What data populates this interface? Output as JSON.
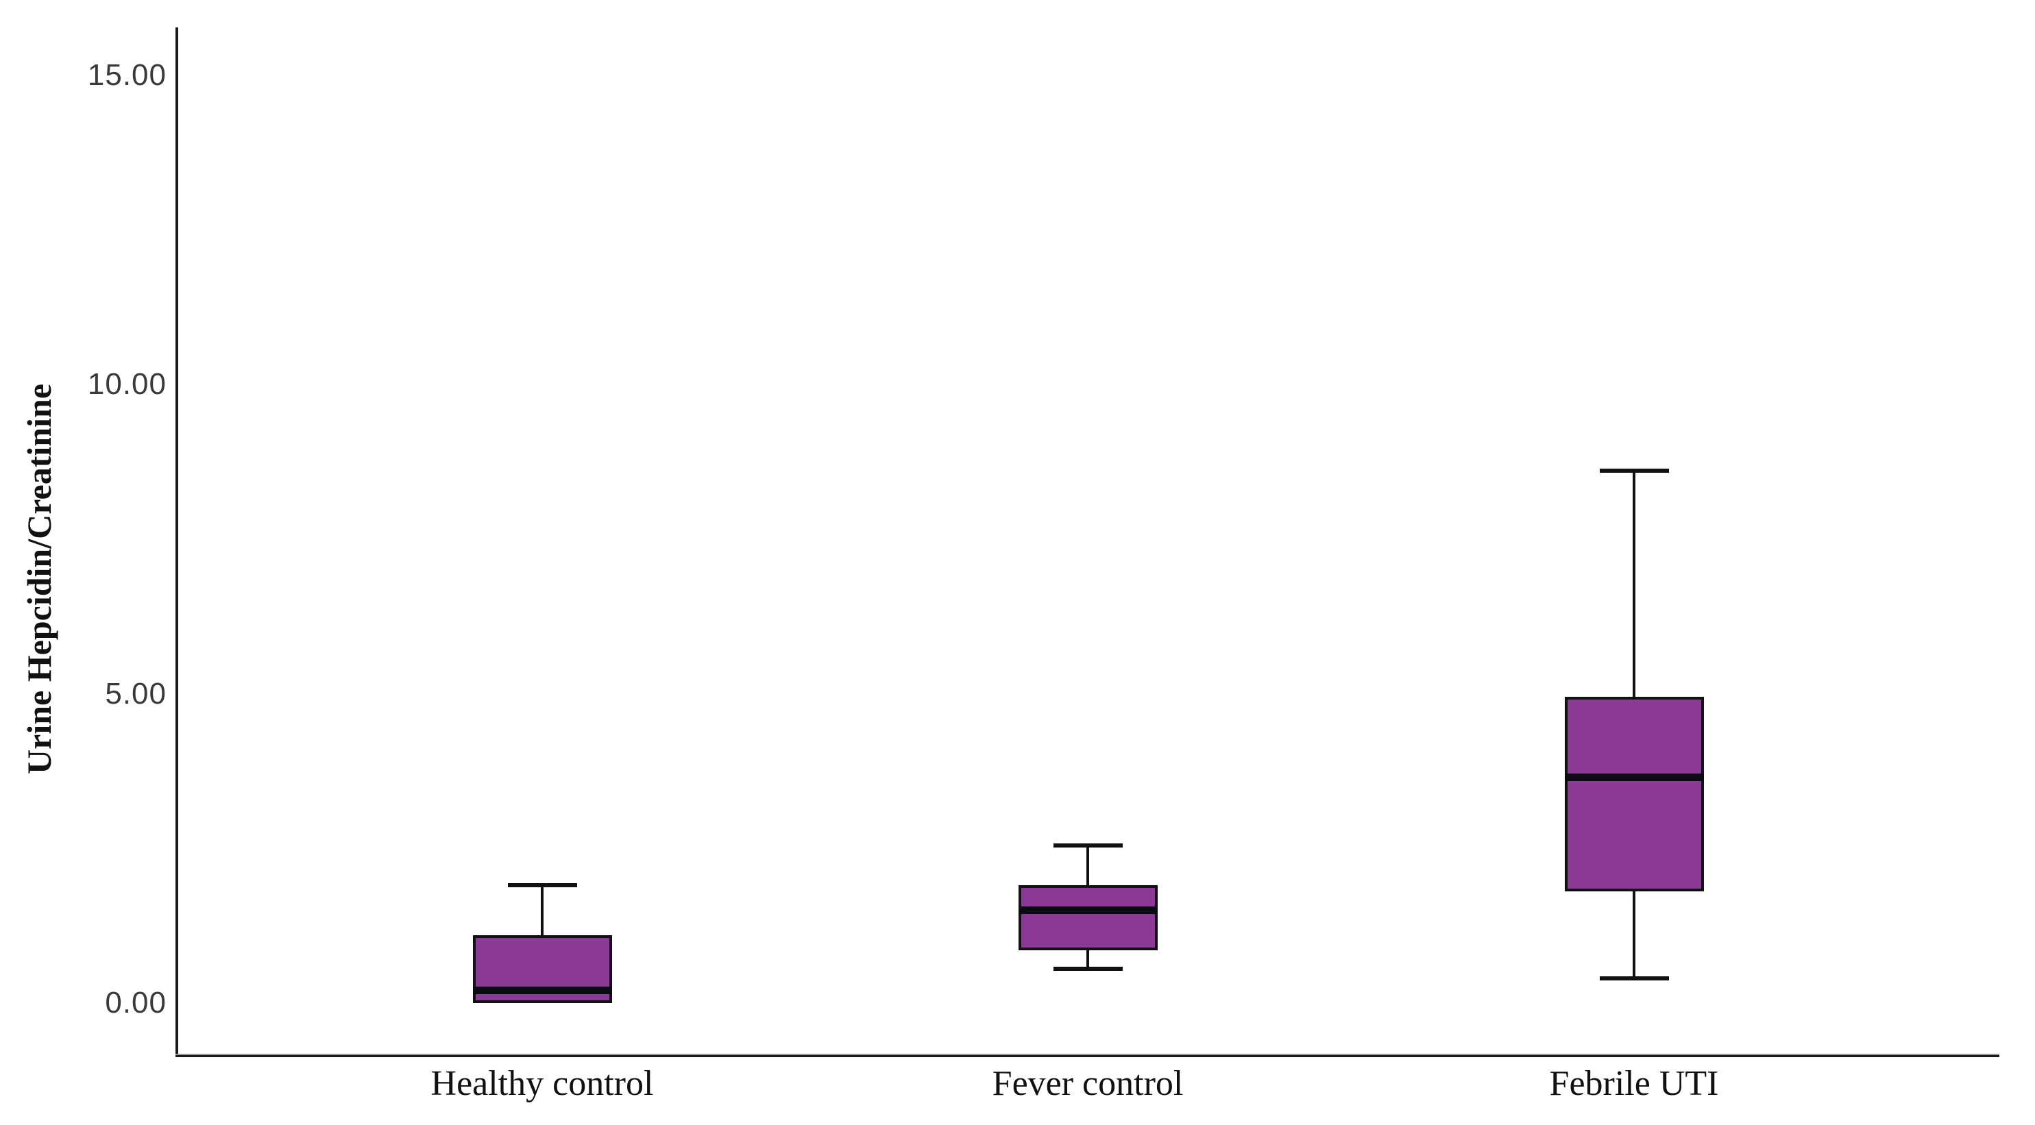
{
  "chart_data": {
    "type": "box",
    "title": "",
    "xlabel": "",
    "ylabel": "Urine Hepcidin/Creatinine",
    "categories": [
      "Healthy control",
      "Fever control",
      "Febrile UTI"
    ],
    "ytick_labels": [
      "15.00",
      "10.00",
      "5.00",
      "0.00"
    ],
    "ytick_values": [
      15,
      10,
      5,
      0
    ],
    "ylim": [
      -0.8,
      15.8
    ],
    "grid": false,
    "legend": null,
    "colors": {
      "box_fill": "#8b3a96",
      "box_border": "#111111",
      "median": "#0b0b14",
      "whisker": "#111111",
      "axis": "#1a1a1a",
      "tick_label": "#3a3a3a",
      "category_label": "#111111",
      "background": "#ffffff"
    },
    "series": [
      {
        "name": "Healthy control",
        "min": 0.0,
        "q1": 0.0,
        "median": 0.2,
        "q3": 1.1,
        "max": 1.9
      },
      {
        "name": "Fever control",
        "min": 0.55,
        "q1": 0.85,
        "median": 1.5,
        "q3": 1.9,
        "max": 2.55
      },
      {
        "name": "Febrile UTI",
        "min": 0.4,
        "q1": 1.8,
        "median": 3.65,
        "q3": 4.95,
        "max": 8.6
      }
    ]
  }
}
